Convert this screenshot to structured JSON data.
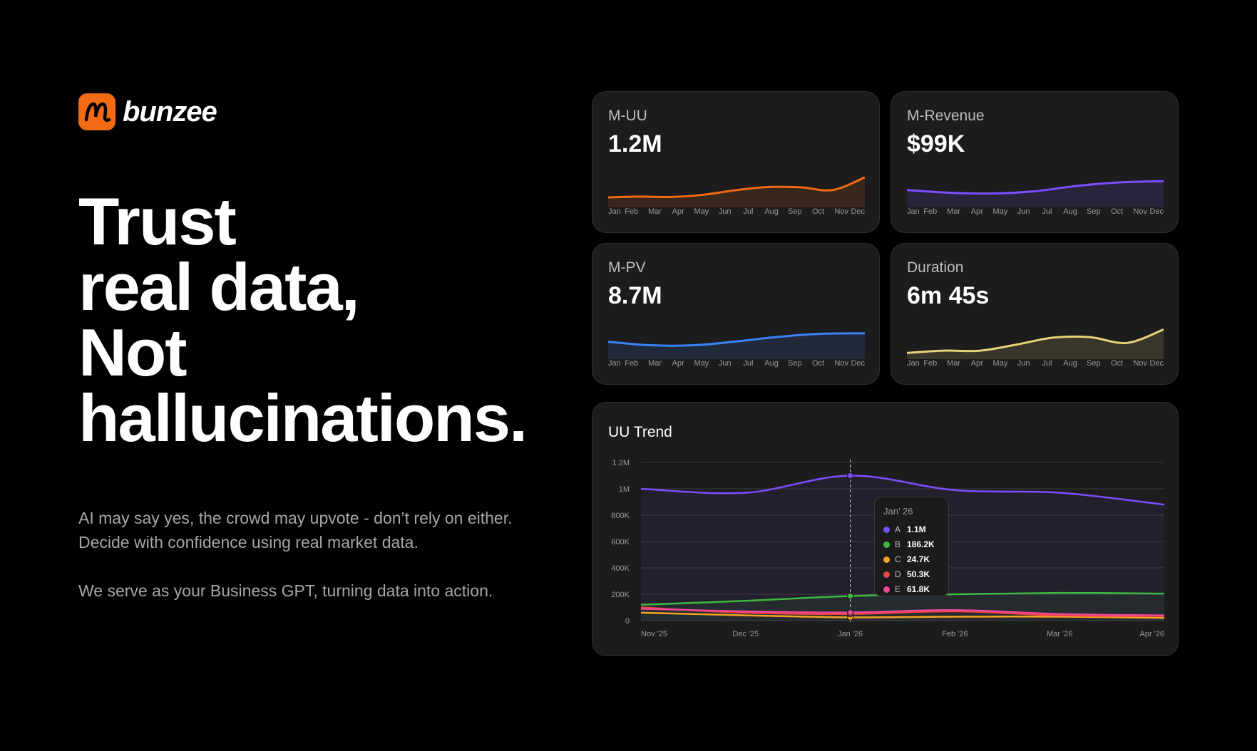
{
  "brand": {
    "name": "bunzee",
    "accent": "#f26a12"
  },
  "headline": [
    "Trust",
    "real data,",
    "Not",
    "hallucinations."
  ],
  "paragraphs": [
    "AI may say yes, the crowd may upvote - don’t rely on either. Decide with confidence using real market data.",
    "We serve as your Business GPT, turning data into action."
  ],
  "months": [
    "Jan",
    "Feb",
    "Mar",
    "Apr",
    "May",
    "Jun",
    "Jul",
    "Aug",
    "Sep",
    "Oct",
    "Nov",
    "Dec"
  ],
  "metrics": [
    {
      "label": "M-UU",
      "value": "1.2M",
      "color": "#f26a12",
      "series": [
        0.26,
        0.28,
        0.27,
        0.33,
        0.45,
        0.53,
        0.52,
        0.45,
        0.78
      ]
    },
    {
      "label": "M-Revenue",
      "value": "$99K",
      "color": "#7c4dff",
      "series": [
        0.45,
        0.38,
        0.36,
        0.42,
        0.56,
        0.65,
        0.68
      ]
    },
    {
      "label": "M-PV",
      "value": "8.7M",
      "color": "#3b82f6",
      "series": [
        0.45,
        0.36,
        0.36,
        0.46,
        0.58,
        0.66,
        0.67
      ]
    },
    {
      "label": "Duration",
      "value": "6m 45s",
      "color": "#e8d27a",
      "series": [
        0.16,
        0.22,
        0.22,
        0.38,
        0.56,
        0.57,
        0.42,
        0.77
      ]
    }
  ],
  "trend": {
    "title": "UU Trend",
    "y_ticks": [
      "0",
      "200K",
      "400K",
      "600K",
      "800K",
      "1M",
      "1.2M"
    ],
    "x_ticks": [
      "Nov '25",
      "Dec '25",
      "Jan '26",
      "Feb '26",
      "Mar '26",
      "Apr '26"
    ],
    "tooltip": {
      "title": "Jan’ 26",
      "rows": [
        {
          "key": "A",
          "value": "1.1M",
          "color": "#7c4dff"
        },
        {
          "key": "B",
          "value": "186.2K",
          "color": "#3fb93f"
        },
        {
          "key": "C",
          "value": "24.7K",
          "color": "#f5a524"
        },
        {
          "key": "D",
          "value": "50.3K",
          "color": "#ef4444"
        },
        {
          "key": "E",
          "value": "61.8K",
          "color": "#ec4899"
        }
      ]
    }
  },
  "chart_data": {
    "type": "line",
    "title": "UU Trend",
    "x": [
      "Nov '25",
      "Dec '25",
      "Jan '26",
      "Feb '26",
      "Mar '26",
      "Apr '26"
    ],
    "ylim": [
      0,
      1200000
    ],
    "grid": true,
    "series": [
      {
        "name": "A",
        "color": "#7c4dff",
        "values": [
          1000000,
          970000,
          1100000,
          990000,
          970000,
          880000
        ]
      },
      {
        "name": "B",
        "color": "#3fb93f",
        "values": [
          120000,
          150000,
          186200,
          200000,
          210000,
          205000
        ]
      },
      {
        "name": "C",
        "color": "#f5a524",
        "values": [
          60000,
          40000,
          24700,
          30000,
          30000,
          20000
        ]
      },
      {
        "name": "D",
        "color": "#ef4444",
        "values": [
          100000,
          60000,
          50300,
          70000,
          40000,
          35000
        ]
      },
      {
        "name": "E",
        "color": "#ec4899",
        "values": [
          90000,
          70000,
          61800,
          80000,
          50000,
          40000
        ]
      }
    ]
  }
}
